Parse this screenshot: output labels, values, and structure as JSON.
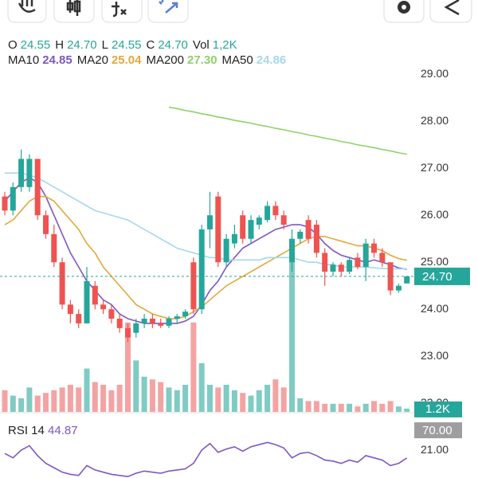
{
  "chart_data": {
    "type": "candlestick",
    "ohlc_header": [
      {
        "label": "O",
        "value": "24.55"
      },
      {
        "label": "H",
        "value": "24.70"
      },
      {
        "label": "L",
        "value": "24.55"
      },
      {
        "label": "C",
        "value": "24.70"
      },
      {
        "label": "Vol",
        "value": "1,2K"
      }
    ],
    "ylim": [
      20.41,
      29.14
    ],
    "yticks": [
      {
        "value": 21,
        "label": "21.00"
      },
      {
        "value": 22,
        "label": "22.00"
      },
      {
        "value": 23,
        "label": "23.00"
      },
      {
        "value": 24,
        "label": "24.00"
      },
      {
        "value": 25,
        "label": "25.00"
      },
      {
        "value": 26,
        "label": "26.00"
      },
      {
        "value": 27,
        "label": "27.00"
      },
      {
        "value": 28,
        "label": "28.00"
      },
      {
        "value": 29,
        "label": "29.00"
      }
    ],
    "up_color": "#26a69a",
    "down_color": "#ef5350",
    "volume_up_color": "#80cbc4",
    "volume_down_color": "#f4a3a3",
    "ohlc": [
      [
        26.4,
        26.5,
        26.0,
        26.1
      ],
      [
        26.1,
        26.7,
        26.0,
        26.6
      ],
      [
        26.6,
        27.4,
        26.5,
        27.2
      ],
      [
        26.6,
        27.3,
        26.5,
        27.2
      ],
      [
        27.2,
        27.2,
        25.9,
        26.0
      ],
      [
        26.0,
        26.1,
        25.5,
        25.6
      ],
      [
        25.6,
        25.8,
        24.9,
        25.0
      ],
      [
        25.0,
        25.1,
        24.0,
        24.1
      ],
      [
        24.1,
        24.2,
        23.7,
        23.9
      ],
      [
        23.9,
        24.0,
        23.6,
        23.7
      ],
      [
        23.7,
        24.9,
        23.7,
        24.6
      ],
      [
        24.5,
        24.6,
        24.0,
        24.1
      ],
      [
        24.1,
        24.2,
        23.9,
        24.0
      ],
      [
        24.0,
        24.1,
        23.7,
        23.8
      ],
      [
        23.8,
        23.9,
        23.5,
        23.6
      ],
      [
        23.6,
        23.7,
        23.3,
        23.4
      ],
      [
        23.5,
        23.8,
        23.4,
        23.7
      ],
      [
        23.7,
        23.9,
        23.6,
        23.8
      ],
      [
        23.8,
        23.9,
        23.6,
        23.7
      ],
      [
        23.7,
        23.8,
        23.6,
        23.65
      ],
      [
        23.65,
        23.85,
        23.6,
        23.8
      ],
      [
        23.8,
        23.9,
        23.7,
        23.85
      ],
      [
        23.85,
        24.0,
        23.8,
        23.95
      ],
      [
        25.0,
        25.1,
        23.9,
        24.0
      ],
      [
        24.0,
        25.8,
        23.9,
        25.7
      ],
      [
        25.7,
        26.5,
        25.3,
        26.0
      ],
      [
        26.4,
        26.5,
        24.9,
        25.0
      ],
      [
        25.0,
        25.6,
        24.9,
        25.5
      ],
      [
        25.4,
        25.8,
        25.3,
        25.6
      ],
      [
        26.0,
        26.1,
        25.4,
        25.5
      ],
      [
        25.5,
        26.0,
        25.4,
        25.9
      ],
      [
        25.8,
        26.0,
        25.7,
        25.95
      ],
      [
        25.9,
        26.3,
        25.85,
        26.2
      ],
      [
        26.2,
        26.3,
        25.9,
        26.0
      ],
      [
        26.0,
        26.1,
        25.7,
        25.8
      ],
      [
        25.0,
        25.7,
        24.8,
        25.5
      ],
      [
        25.5,
        25.7,
        25.4,
        25.65
      ],
      [
        25.9,
        26.0,
        25.4,
        25.5
      ],
      [
        25.8,
        25.9,
        25.1,
        25.2
      ],
      [
        25.2,
        25.3,
        24.5,
        24.8
      ],
      [
        24.8,
        25.0,
        24.7,
        24.95
      ],
      [
        24.95,
        25.0,
        24.7,
        24.8
      ],
      [
        24.8,
        25.1,
        24.75,
        25.05
      ],
      [
        25.1,
        25.2,
        24.85,
        24.9
      ],
      [
        24.9,
        25.5,
        24.6,
        25.4
      ],
      [
        25.4,
        25.5,
        25.1,
        25.2
      ],
      [
        25.2,
        25.3,
        24.9,
        25.0
      ],
      [
        25.0,
        25.0,
        24.3,
        24.4
      ],
      [
        24.4,
        24.55,
        24.35,
        24.5
      ],
      [
        24.55,
        24.7,
        24.55,
        24.7
      ]
    ],
    "vlim": [
      0,
      125
    ],
    "volume": [
      8,
      6,
      5,
      9,
      6,
      7,
      8,
      9,
      10,
      9,
      16,
      11,
      10,
      8,
      10,
      33,
      19,
      13,
      12,
      11,
      9,
      8,
      10,
      33,
      18,
      10,
      9,
      10,
      8,
      7,
      6,
      8,
      10,
      12,
      9,
      61,
      5,
      4,
      4,
      3,
      3,
      3,
      3,
      2,
      3,
      4,
      3,
      4,
      2,
      1.2
    ],
    "volume_badge": {
      "value": 1.2,
      "label": "1.2K"
    },
    "last_price": {
      "value": 24.7,
      "label": "24.70"
    },
    "ma_series": [
      {
        "name": "MA10",
        "current": "24.85",
        "color": "#7e57c2",
        "values": [
          26.3,
          26.5,
          26.7,
          26.8,
          26.7,
          26.4,
          26.0,
          25.6,
          25.2,
          24.9,
          24.6,
          24.4,
          24.2,
          24.1,
          23.9,
          23.8,
          23.75,
          23.7,
          23.7,
          23.7,
          23.7,
          23.7,
          23.75,
          23.85,
          24.1,
          24.4,
          24.6,
          24.9,
          25.1,
          25.3,
          25.4,
          25.5,
          25.6,
          25.7,
          25.75,
          25.8,
          25.8,
          25.75,
          25.6,
          25.4,
          25.25,
          25.15,
          25.1,
          25.05,
          25.0,
          25.05,
          25.0,
          24.95,
          24.88,
          24.85
        ]
      },
      {
        "name": "MA20",
        "current": "25.04",
        "color": "#e3a83c",
        "values": [
          25.8,
          25.9,
          26.1,
          26.3,
          26.4,
          26.4,
          26.3,
          26.1,
          25.9,
          25.7,
          25.4,
          25.2,
          24.9,
          24.7,
          24.5,
          24.3,
          24.1,
          24.0,
          23.9,
          23.85,
          23.8,
          23.8,
          23.85,
          23.95,
          24.05,
          24.2,
          24.35,
          24.5,
          24.6,
          24.7,
          24.8,
          24.9,
          25.0,
          25.1,
          25.2,
          25.3,
          25.4,
          25.5,
          25.55,
          25.55,
          25.5,
          25.45,
          25.4,
          25.35,
          25.35,
          25.3,
          25.25,
          25.15,
          25.08,
          25.04
        ]
      },
      {
        "name": "MA200",
        "current": "27.30",
        "color": "#8fd16a",
        "values": [
          null,
          null,
          null,
          null,
          null,
          null,
          null,
          null,
          null,
          null,
          null,
          null,
          null,
          null,
          null,
          null,
          null,
          null,
          null,
          null,
          28.3,
          28.27,
          28.23,
          28.2,
          28.16,
          28.13,
          28.09,
          28.06,
          28.02,
          27.99,
          27.96,
          27.92,
          27.89,
          27.85,
          27.82,
          27.78,
          27.75,
          27.71,
          27.68,
          27.64,
          27.61,
          27.57,
          27.54,
          27.5,
          27.47,
          27.44,
          27.4,
          27.37,
          27.33,
          27.3
        ]
      },
      {
        "name": "MA50",
        "current": "24.86",
        "color": "#a6d8ea",
        "values": [
          26.9,
          26.9,
          26.9,
          26.85,
          26.8,
          26.7,
          26.6,
          26.5,
          26.4,
          26.3,
          26.2,
          26.1,
          26.05,
          26.0,
          25.95,
          25.9,
          25.8,
          25.7,
          25.6,
          25.5,
          25.4,
          25.3,
          25.25,
          25.2,
          25.15,
          25.1,
          25.1,
          25.05,
          25.05,
          25.05,
          25.05,
          25.05,
          25.1,
          25.1,
          25.1,
          25.1,
          25.05,
          25.0,
          25.0,
          24.95,
          24.95,
          24.9,
          24.9,
          24.9,
          24.9,
          24.88,
          24.87,
          24.86,
          24.86,
          24.86
        ]
      }
    ],
    "rsi": {
      "name": "RSI 14",
      "current": "44.87",
      "color": "#7e57c2",
      "ylim": [
        26.7,
        77.3
      ],
      "badge": {
        "value": 70,
        "label": "70.00"
      },
      "values": [
        49,
        45,
        52,
        56,
        47,
        40,
        36,
        32,
        30,
        29,
        38,
        34,
        32,
        30,
        29,
        28,
        31,
        33,
        32,
        31,
        33,
        34,
        35,
        40,
        52,
        58,
        50,
        53,
        55,
        51,
        55,
        57,
        59,
        57,
        54,
        45,
        49,
        50,
        47,
        43,
        42,
        40,
        43,
        41,
        47,
        45,
        43,
        38,
        40,
        44.87
      ]
    }
  }
}
